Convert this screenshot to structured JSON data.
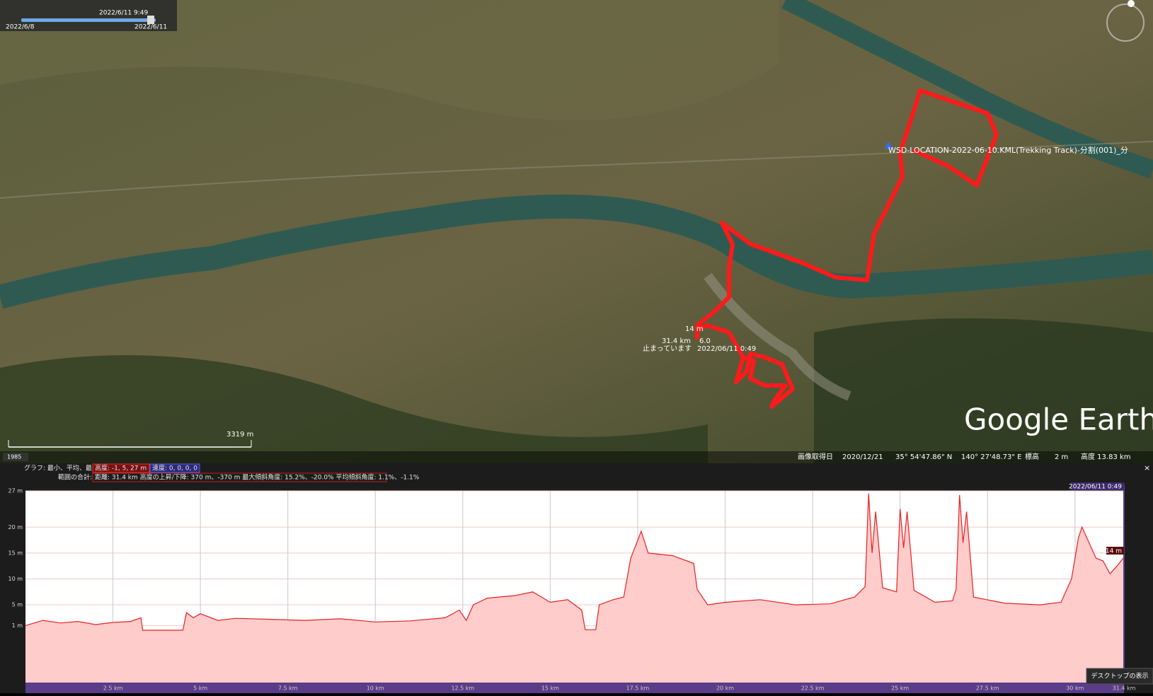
{
  "time_slider": {
    "current": "2022/6/11  9:49",
    "start": "2022/6/8",
    "end": "2022/6/11"
  },
  "map": {
    "track_name": "WSD-LOCATION-2022-06-10.KML(Trekking Track)-分割(001)_分",
    "point_altitude": "14 m",
    "point_distance": "31.4 km",
    "point_speed": "6.0",
    "point_status": "止まっています",
    "point_time": "2022/06/11 0:49",
    "logo": "Google Earth",
    "scale": "3319 m",
    "year": "1985"
  },
  "status_bar": {
    "imagery_label": "画像取得日",
    "imagery_date": "2020/12/21",
    "lat": "35° 54'47.86\" N",
    "lon": "140° 27'48.73\" E",
    "elev_label": "標高",
    "elev": "2 m",
    "alt": "高度  13.83 km"
  },
  "profile_header": {
    "graph_label": "グラフ: 最小、平均、最大:",
    "altitude_stats": "高度: -1, 5, 27 m",
    "speed_stats": "速度: 0, 0, 0, 0",
    "range_label": "範囲の合計:",
    "range_stats": "距離: 31.4 km 高度の上昇/下降: 370 m、-370 m 最大傾斜角度: 15.2%、-20.0% 平均傾斜角度: 1.1%、-1.1%"
  },
  "chart_data": {
    "type": "area",
    "color": "#e82020",
    "x": [
      0,
      0.5,
      1.0,
      1.5,
      2.0,
      2.5,
      3.0,
      3.3,
      3.35,
      4.5,
      4.6,
      4.8,
      5.0,
      5.5,
      6.0,
      7.0,
      8.0,
      9.0,
      10.0,
      11.0,
      12.0,
      12.4,
      12.6,
      12.8,
      13.2,
      14.0,
      14.5,
      15.0,
      15.5,
      15.9,
      16.0,
      16.3,
      16.4,
      16.8,
      17.1,
      17.3,
      17.6,
      17.8,
      18.5,
      19.1,
      19.2,
      19.5,
      20.0,
      21.0,
      22.0,
      23.0,
      23.7,
      24.0,
      24.1,
      24.2,
      24.3,
      24.5,
      24.9,
      25.0,
      25.1,
      25.2,
      25.4,
      26.0,
      26.5,
      26.6,
      26.7,
      26.8,
      26.9,
      27.1,
      28.0,
      29.0,
      29.6,
      29.9,
      30.1,
      30.2,
      30.4,
      30.6,
      30.8,
      31.0,
      31.2,
      31.4
    ],
    "values": [
      1.0,
      2.0,
      1.5,
      1.8,
      1.2,
      1.6,
      1.8,
      2.5,
      0.1,
      0.1,
      3.5,
      2.5,
      3.3,
      2.0,
      2.4,
      2.2,
      2.0,
      2.3,
      1.7,
      1.9,
      2.5,
      4.0,
      2.0,
      5.0,
      6.3,
      6.8,
      7.5,
      5.5,
      6.0,
      4.0,
      0.2,
      0.2,
      5.0,
      6.0,
      6.5,
      14.0,
      19.2,
      15.0,
      14.5,
      13.0,
      8.0,
      5.0,
      5.5,
      6.0,
      5.0,
      5.2,
      6.5,
      8.5,
      26.5,
      15.0,
      23.0,
      8.3,
      7.5,
      23.5,
      16.0,
      23.0,
      7.8,
      5.5,
      5.8,
      8.0,
      26.2,
      17.0,
      23.0,
      6.5,
      5.3,
      5.0,
      5.5,
      10.0,
      18.0,
      20.0,
      17.0,
      14.0,
      13.5,
      11.0,
      12.5,
      14.2
    ],
    "xlim": [
      0,
      31.4
    ],
    "ylim": [
      -10,
      27
    ],
    "xticks": [
      {
        "value": 2.5,
        "label": "2.5 km"
      },
      {
        "value": 5,
        "label": "5 km"
      },
      {
        "value": 7.5,
        "label": "7.5 km"
      },
      {
        "value": 10,
        "label": "10 km"
      },
      {
        "value": 12.5,
        "label": "12.5 km"
      },
      {
        "value": 15,
        "label": "15 km"
      },
      {
        "value": 17.5,
        "label": "17.5 km"
      },
      {
        "value": 20,
        "label": "20 km"
      },
      {
        "value": 22.5,
        "label": "22.5 km"
      },
      {
        "value": 25,
        "label": "25 km"
      },
      {
        "value": 27.5,
        "label": "27.5 km"
      },
      {
        "value": 30,
        "label": "30 km"
      },
      {
        "value": 31.4,
        "label": "31.4 km"
      }
    ],
    "yticks": [
      {
        "value": 1,
        "label": "1 m"
      },
      {
        "value": 5,
        "label": "5 m"
      },
      {
        "value": 10,
        "label": "10 m"
      },
      {
        "value": 15,
        "label": "15 m"
      },
      {
        "value": 20,
        "label": "20 m"
      },
      {
        "value": 27,
        "label": "27 m"
      }
    ],
    "cursor_time": "2022/06/11 0:49",
    "cursor_value": "14 m",
    "tooltip": "デスクトップの表示"
  }
}
